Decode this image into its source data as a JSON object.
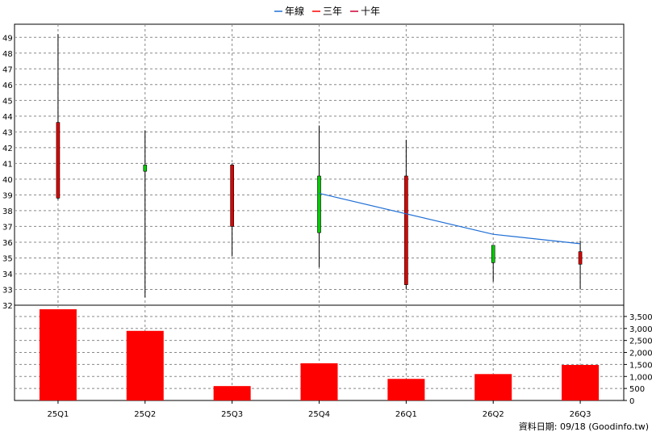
{
  "legend": [
    {
      "label": "年線",
      "color": "#1f6fd6"
    },
    {
      "label": "三年",
      "color": "#ff0000"
    },
    {
      "label": "十年",
      "color": "#cc0033"
    }
  ],
  "footer": "資料日期: 09/18  (Goodinfo.tw)",
  "chart_data": [
    {
      "type": "candlestick",
      "categories": [
        "25Q1",
        "25Q2",
        "25Q3",
        "25Q4",
        "26Q1",
        "26Q2",
        "26Q3"
      ],
      "ylim": [
        32,
        49.5
      ],
      "ticks": [
        "32",
        "33",
        "34",
        "35",
        "36",
        "37",
        "38",
        "39",
        "40",
        "41",
        "42",
        "43",
        "44",
        "45",
        "46",
        "47",
        "48",
        "49"
      ],
      "grid": true,
      "colors": {
        "up": "#00cc00",
        "down": "#dd0000"
      },
      "candles": [
        {
          "x": "25Q1",
          "open": 43.6,
          "high": 49.2,
          "low": 38.7,
          "close": 38.8
        },
        {
          "x": "25Q2",
          "open": 40.5,
          "high": 43.1,
          "low": 32.5,
          "close": 40.9
        },
        {
          "x": "25Q3",
          "open": 40.9,
          "high": 41.0,
          "low": 35.1,
          "close": 37.0
        },
        {
          "x": "25Q4",
          "open": 36.6,
          "high": 43.4,
          "low": 34.4,
          "close": 40.2
        },
        {
          "x": "26Q1",
          "open": 40.2,
          "high": 42.5,
          "low": 33.0,
          "close": 33.3
        },
        {
          "x": "26Q2",
          "open": 34.7,
          "high": 35.8,
          "low": 33.5,
          "close": 35.8
        },
        {
          "x": "26Q3",
          "open": 35.4,
          "high": 36.1,
          "low": 33.0,
          "close": 34.6
        }
      ],
      "line_series": {
        "name": "年線",
        "points": [
          [
            "25Q4",
            39.1
          ],
          [
            "26Q1",
            37.8
          ],
          [
            "26Q2",
            36.5
          ],
          [
            "26Q3",
            35.9
          ]
        ]
      }
    },
    {
      "type": "bar",
      "categories": [
        "25Q1",
        "25Q2",
        "25Q3",
        "25Q4",
        "26Q1",
        "26Q2",
        "26Q3"
      ],
      "values": [
        3800,
        2900,
        600,
        1550,
        900,
        1100,
        1480
      ],
      "ylim": [
        0,
        3700
      ],
      "ticks": [
        "0",
        "500",
        "1,000",
        "1,500",
        "2,000",
        "2,500",
        "3,000",
        "3,500"
      ],
      "color": "#ff0000"
    }
  ]
}
